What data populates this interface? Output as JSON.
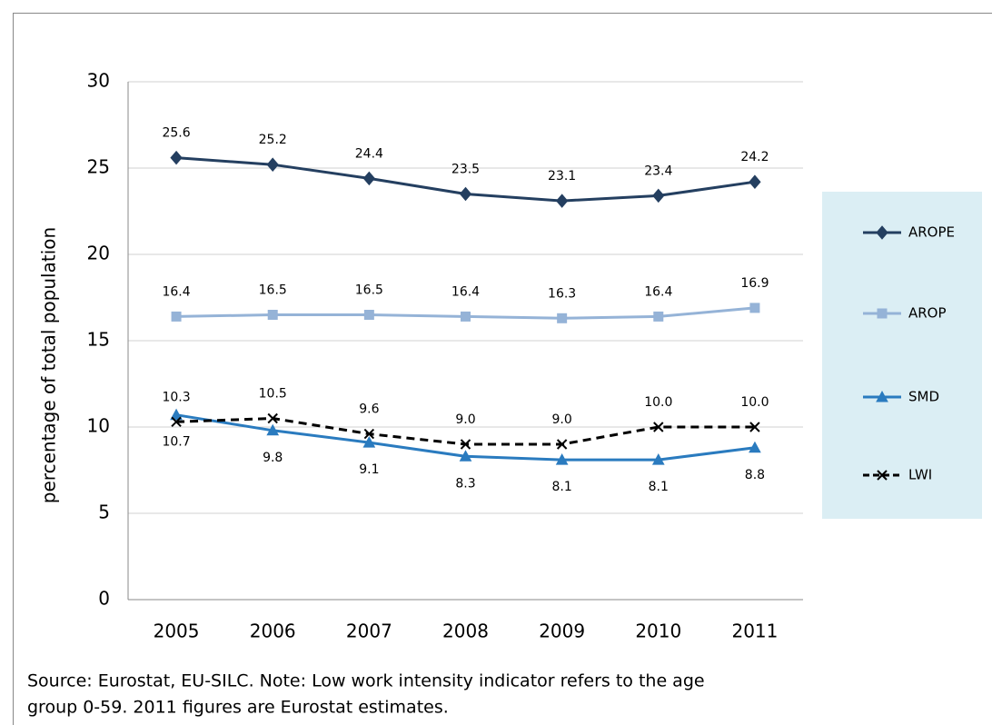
{
  "chart_data": {
    "type": "line",
    "y_label": "percentage of total population",
    "categories": [
      "2005",
      "2006",
      "2007",
      "2008",
      "2009",
      "2010",
      "2011"
    ],
    "series": [
      {
        "name": "AROPE",
        "color": "#243f60",
        "marker": "diamond",
        "values": [
          25.6,
          25.2,
          24.4,
          23.5,
          23.1,
          23.4,
          24.2
        ]
      },
      {
        "name": "AROP",
        "color": "#95b3d7",
        "marker": "square",
        "values": [
          16.4,
          16.5,
          16.5,
          16.4,
          16.3,
          16.4,
          16.9
        ]
      },
      {
        "name": "SMD",
        "color": "#2a7bbf",
        "marker": "triangle",
        "values": [
          10.7,
          9.8,
          9.1,
          8.3,
          8.1,
          8.1,
          8.8
        ]
      },
      {
        "name": "LWI",
        "color": "#000000",
        "marker": "x",
        "dashed": true,
        "values": [
          10.3,
          10.5,
          9.6,
          9,
          9,
          10,
          10
        ],
        "value_labels": [
          "10.3",
          "10.5",
          "9.6",
          "9.0",
          "9.0",
          "10.0",
          "10.0"
        ]
      }
    ],
    "ylim": [
      0,
      30
    ],
    "yticks": [
      0,
      5,
      10,
      15,
      20,
      25,
      30
    ],
    "grid": true,
    "legend": "right",
    "note": [
      "Source: Eurostat, EU-SILC. Note: Low work intensity indicator refers to the age",
      "group 0-59. 2011 figures are Eurostat estimates."
    ]
  }
}
